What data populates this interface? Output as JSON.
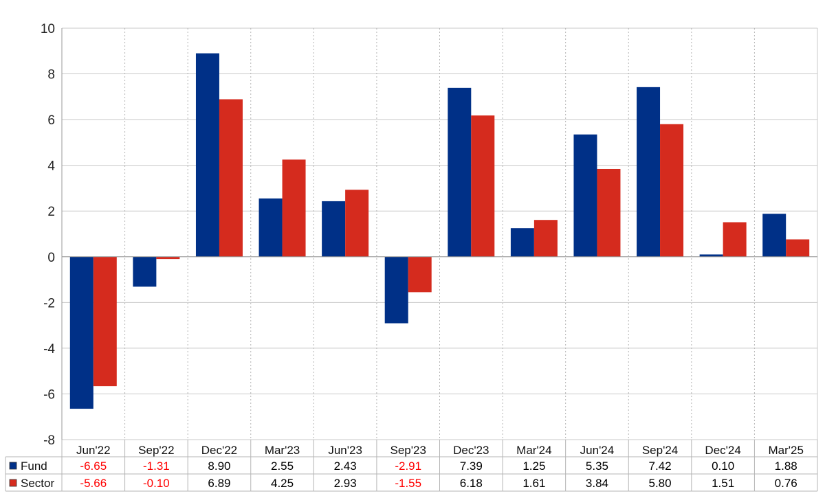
{
  "chart_data": {
    "type": "bar",
    "categories": [
      "Jun'22",
      "Sep'22",
      "Dec'22",
      "Mar'23",
      "Jun'23",
      "Sep'23",
      "Dec'23",
      "Mar'24",
      "Jun'24",
      "Sep'24",
      "Dec'24",
      "Mar'25"
    ],
    "series": [
      {
        "name": "Fund",
        "color": "#003087",
        "values": [
          -6.65,
          -1.31,
          8.9,
          2.55,
          2.43,
          -2.91,
          7.39,
          1.25,
          5.35,
          7.42,
          0.1,
          1.88
        ],
        "labels": [
          "-6.65",
          "-1.31",
          "8.90",
          "2.55",
          "2.43",
          "-2.91",
          "7.39",
          "1.25",
          "5.35",
          "7.42",
          "0.10",
          "1.88"
        ]
      },
      {
        "name": "Sector",
        "color": "#d52b1e",
        "values": [
          -5.66,
          -0.1,
          6.89,
          4.25,
          2.93,
          -1.55,
          6.18,
          1.61,
          3.84,
          5.8,
          1.51,
          0.76
        ],
        "labels": [
          "-5.66",
          "-0.10",
          "6.89",
          "4.25",
          "2.93",
          "-1.55",
          "6.18",
          "1.61",
          "3.84",
          "5.80",
          "1.51",
          "0.76"
        ]
      }
    ],
    "ylim": [
      -8,
      10
    ],
    "yticks": [
      "10",
      "8",
      "6",
      "4",
      "2",
      "0",
      "-2",
      "-4",
      "-6",
      "-8"
    ],
    "ytick_values": [
      10,
      8,
      6,
      4,
      2,
      0,
      -2,
      -4,
      -6,
      -8
    ],
    "grid": true,
    "legend": "data-table-below",
    "negative_label_color": "#ff0000",
    "positive_label_color": "#000000"
  }
}
